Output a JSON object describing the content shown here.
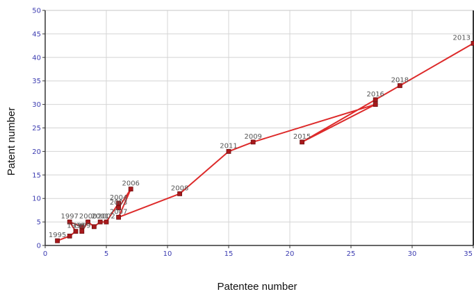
{
  "chart_data": {
    "type": "line",
    "xlabel": "Patentee number",
    "ylabel": "Patent number",
    "xlim": [
      0,
      35
    ],
    "ylim": [
      0,
      50
    ],
    "xticks": [
      0,
      5,
      10,
      15,
      20,
      25,
      30,
      35
    ],
    "xtick_labels": [
      "0",
      "5",
      "10",
      "15",
      "20",
      "25",
      "30",
      "35"
    ],
    "yticks": [
      0,
      5,
      10,
      15,
      20,
      25,
      30,
      35,
      40,
      45,
      50
    ],
    "ytick_labels": [
      "0",
      "5",
      "10",
      "15",
      "20",
      "25",
      "30",
      "35",
      "40",
      "45",
      "50"
    ],
    "grid": true,
    "series": [
      {
        "color": "#dd2a2a",
        "marker_color": "#a8191c",
        "points": [
          {
            "label": "1995",
            "x": 1,
            "y": 1
          },
          {
            "label": "",
            "x": 2,
            "y": 2
          },
          {
            "label": "1998",
            "x": 2.5,
            "y": 3
          },
          {
            "label": "1997",
            "x": 2,
            "y": 5
          },
          {
            "label": "",
            "x": 3,
            "y": 4
          },
          {
            "label": "1999",
            "x": 3,
            "y": 3
          },
          {
            "label": "2000",
            "x": 3.5,
            "y": 5
          },
          {
            "label": "",
            "x": 4,
            "y": 4
          },
          {
            "label": "2001",
            "x": 4.5,
            "y": 5
          },
          {
            "label": "2002",
            "x": 5,
            "y": 5
          },
          {
            "label": "2004",
            "x": 6,
            "y": 9
          },
          {
            "label": "2003",
            "x": 6,
            "y": 8
          },
          {
            "label": "2006",
            "x": 7,
            "y": 12
          },
          {
            "label": "2007",
            "x": 6,
            "y": 6
          },
          {
            "label": "2008",
            "x": 11,
            "y": 11
          },
          {
            "label": "2011",
            "x": 15,
            "y": 20
          },
          {
            "label": "2009",
            "x": 17,
            "y": 22
          },
          {
            "label": "",
            "x": 27,
            "y": 30
          },
          {
            "label": "2015",
            "x": 21,
            "y": 22
          },
          {
            "label": "2016",
            "x": 27,
            "y": 31
          },
          {
            "label": "2018",
            "x": 29,
            "y": 34
          },
          {
            "label": "2013",
            "x": 35,
            "y": 43
          }
        ]
      }
    ]
  }
}
